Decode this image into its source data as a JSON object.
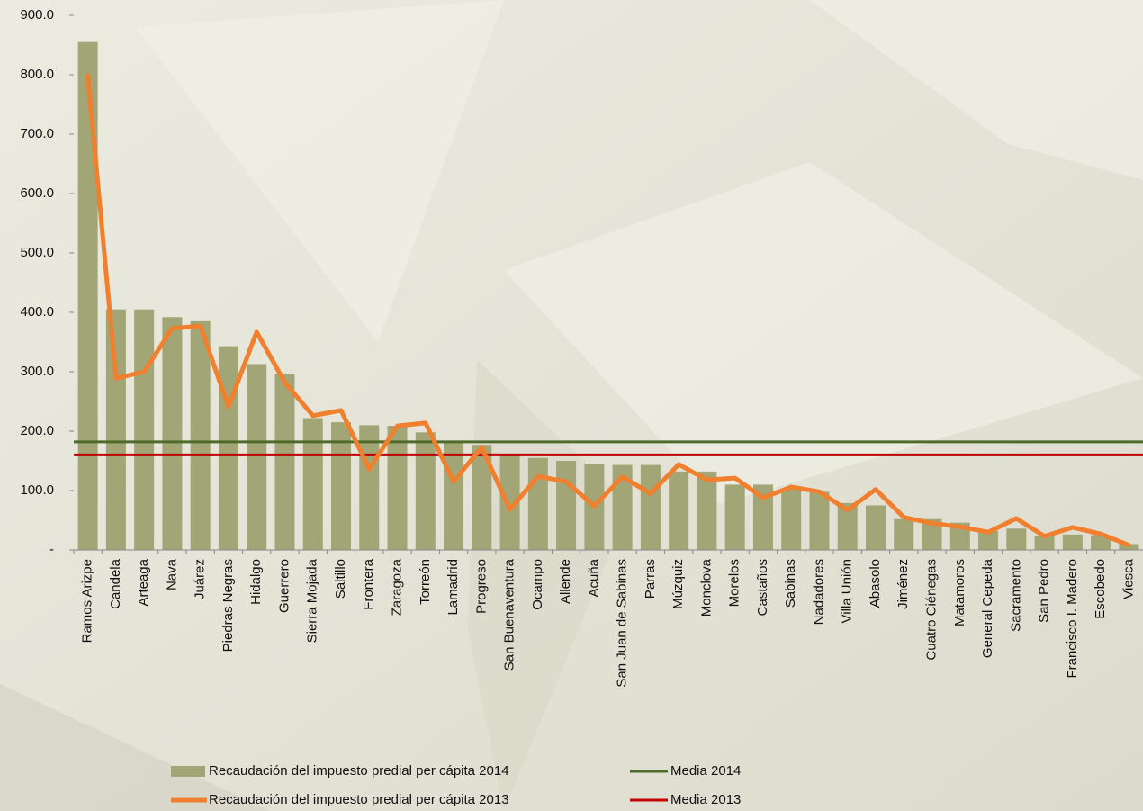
{
  "chart_data": {
    "type": "bar",
    "categories": [
      "Ramos Arizpe",
      "Candela",
      "Arteaga",
      "Nava",
      "Juárez",
      "Piedras Negras",
      "Hidalgo",
      "Guerrero",
      "Sierra Mojada",
      "Saltillo",
      "Frontera",
      "Zaragoza",
      "Torreón",
      "Lamadrid",
      "Progreso",
      "San Buenaventura",
      "Ocampo",
      "Allende",
      "Acuña",
      "San Juan de Sabinas",
      "Parras",
      "Múzquiz",
      "Monclova",
      "Morelos",
      "Castaños",
      "Sabinas",
      "Nadadores",
      "Villa Unión",
      "Abasolo",
      "Jiménez",
      "Cuatro Ciénegas",
      "Matamoros",
      "General Cepeda",
      "Sacramento",
      "San Pedro",
      "Francisco I. Madero",
      "Escobedo",
      "Viesca"
    ],
    "series": [
      {
        "name": "Recaudación del impuesto predial per cápita 2014",
        "type": "bar",
        "color": "#a2a575",
        "values": [
          855,
          405,
          405,
          392,
          385,
          343,
          313,
          297,
          222,
          215,
          210,
          209,
          198,
          183,
          177,
          159,
          155,
          150,
          145,
          143,
          143,
          132,
          132,
          110,
          110,
          102,
          98,
          79,
          75,
          52,
          52,
          46,
          32,
          36,
          24,
          26,
          25,
          10
        ]
      },
      {
        "name": "Recaudación del impuesto predial per cápita 2013",
        "type": "line",
        "color": "#f07f2e",
        "values": [
          798,
          289,
          300,
          373,
          377,
          241,
          367,
          282,
          226,
          235,
          136,
          209,
          214,
          115,
          173,
          68,
          124,
          115,
          74,
          123,
          95,
          144,
          118,
          121,
          88,
          106,
          98,
          67,
          102,
          55,
          45,
          39,
          30,
          53,
          23,
          38,
          27,
          8
        ]
      }
    ],
    "reference_lines": [
      {
        "name": "Media 2014",
        "value": 182,
        "color": "#4e6b2b"
      },
      {
        "name": "Media 2013",
        "value": 160,
        "color": "#c00000"
      }
    ],
    "ylim": [
      0,
      900
    ],
    "yticks": [
      {
        "value": 0,
        "label": "-"
      },
      {
        "value": 100,
        "label": "100.0"
      },
      {
        "value": 200,
        "label": "200.0"
      },
      {
        "value": 300,
        "label": "300.0"
      },
      {
        "value": 400,
        "label": "400.0"
      },
      {
        "value": 500,
        "label": "500.0"
      },
      {
        "value": 600,
        "label": "600.0"
      },
      {
        "value": 700,
        "label": "700.0"
      },
      {
        "value": 800,
        "label": "800.0"
      },
      {
        "value": 900,
        "label": "900.0"
      }
    ],
    "grid": false
  }
}
